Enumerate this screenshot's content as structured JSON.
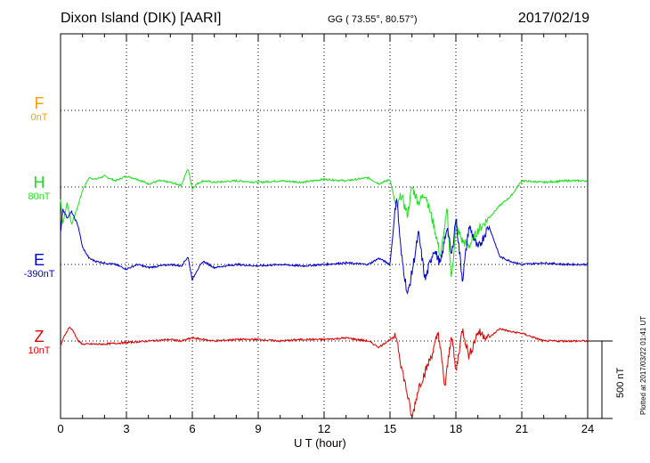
{
  "header": {
    "station": "Dixon Island (DIK)  [AARI]",
    "coords": "GG ( 73.55°,  80.57°)",
    "date": "2017/02/19"
  },
  "footer": {
    "plotted": "Plotted at 2017/03/22 01:41 UT",
    "scale": "500 nT"
  },
  "colors": {
    "F": "#f5a000",
    "H": "#22dd22",
    "E": "#0000cc",
    "Z": "#dd0000"
  },
  "chart_data": {
    "type": "line",
    "xlabel": "U T (hour)",
    "xlim": [
      0,
      24
    ],
    "xticks": [
      "0",
      "3",
      "6",
      "9",
      "12",
      "15",
      "18",
      "21",
      "24"
    ],
    "components": [
      {
        "name": "F",
        "baseline": "0nT"
      },
      {
        "name": "H",
        "baseline": "80nT"
      },
      {
        "name": "E",
        "baseline": "-390nT"
      },
      {
        "name": "Z",
        "baseline": "10nT"
      }
    ],
    "scale_nT": 500,
    "series": [
      {
        "name": "H",
        "x": [
          0,
          0.1,
          0.3,
          0.5,
          0.8,
          1.0,
          1.3,
          1.6,
          2.0,
          2.5,
          3.0,
          3.5,
          4.0,
          4.5,
          5.0,
          5.5,
          5.8,
          6.0,
          6.2,
          6.5,
          7.0,
          8.0,
          9.0,
          10.0,
          11.0,
          12.0,
          13.0,
          14.0,
          14.5,
          15.0,
          15.3,
          15.5,
          15.8,
          16.0,
          16.3,
          16.6,
          17.0,
          17.3,
          17.6,
          17.8,
          18.0,
          18.3,
          18.6,
          19.0,
          19.5,
          20.0,
          20.5,
          21.0,
          22.0,
          23.0,
          24.0
        ],
        "y": [
          -80,
          -240,
          -100,
          -240,
          -120,
          -20,
          60,
          50,
          70,
          40,
          70,
          50,
          20,
          40,
          30,
          10,
          120,
          -10,
          20,
          40,
          30,
          40,
          30,
          40,
          30,
          50,
          40,
          60,
          20,
          50,
          -150,
          -50,
          -180,
          0,
          -100,
          -40,
          -250,
          -450,
          -150,
          -600,
          -250,
          -350,
          -380,
          -280,
          -200,
          -120,
          -60,
          40,
          30,
          40,
          40
        ]
      },
      {
        "name": "E",
        "x": [
          0,
          0.1,
          0.3,
          0.5,
          0.8,
          1.0,
          1.3,
          1.6,
          2.0,
          2.5,
          3.0,
          3.5,
          4.0,
          4.5,
          5.0,
          5.5,
          5.8,
          6.0,
          6.2,
          6.5,
          7.0,
          8.0,
          9.0,
          10.0,
          11.0,
          12.0,
          13.0,
          14.0,
          14.5,
          15.0,
          15.3,
          15.5,
          15.8,
          16.0,
          16.3,
          16.6,
          17.0,
          17.3,
          17.6,
          17.8,
          18.0,
          18.3,
          18.6,
          19.0,
          19.5,
          20.0,
          20.5,
          21.0,
          22.0,
          23.0,
          24.0
        ],
        "y": [
          200,
          360,
          300,
          340,
          250,
          110,
          40,
          20,
          10,
          0,
          -30,
          0,
          -20,
          -10,
          0,
          -10,
          50,
          -100,
          -40,
          20,
          -20,
          0,
          -10,
          0,
          -10,
          0,
          10,
          0,
          40,
          0,
          450,
          80,
          -200,
          -50,
          200,
          -100,
          100,
          0,
          250,
          50,
          300,
          -100,
          250,
          100,
          250,
          50,
          20,
          0,
          10,
          0,
          0
        ]
      },
      {
        "name": "Z",
        "x": [
          0,
          0.2,
          0.4,
          0.6,
          0.8,
          1.0,
          2.0,
          3.0,
          4.0,
          5.0,
          5.5,
          6.0,
          6.5,
          7.0,
          8.0,
          9.0,
          10.0,
          11.0,
          12.0,
          13.0,
          14.0,
          14.5,
          15.0,
          15.3,
          15.5,
          15.8,
          16.0,
          16.3,
          16.6,
          17.0,
          17.2,
          17.5,
          17.8,
          18.0,
          18.3,
          18.6,
          19.0,
          19.5,
          20.0,
          20.5,
          21.0,
          22.0,
          23.0,
          24.0
        ],
        "y": [
          -30,
          40,
          90,
          60,
          0,
          -20,
          -20,
          -10,
          0,
          10,
          0,
          20,
          10,
          0,
          10,
          10,
          0,
          10,
          10,
          20,
          0,
          -40,
          10,
          30,
          -150,
          -350,
          -500,
          -300,
          -200,
          -50,
          60,
          -300,
          50,
          -200,
          80,
          -100,
          60,
          20,
          80,
          60,
          50,
          0,
          0,
          0
        ]
      }
    ]
  }
}
